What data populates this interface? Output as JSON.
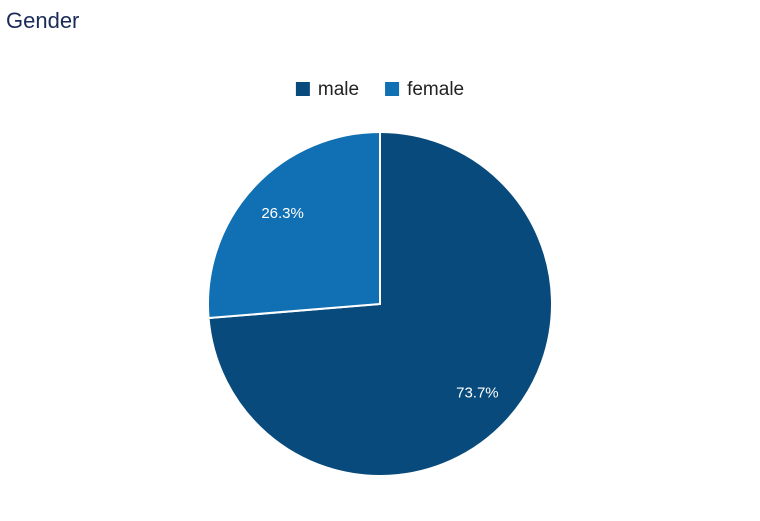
{
  "chart_data": {
    "type": "pie",
    "title": "Gender",
    "categories": [
      "male",
      "female"
    ],
    "values": [
      73.7,
      26.3
    ],
    "value_labels": [
      "73.7%",
      "26.3%"
    ],
    "colors": [
      "#074a7b",
      "#1170b3"
    ],
    "legend": "top"
  }
}
